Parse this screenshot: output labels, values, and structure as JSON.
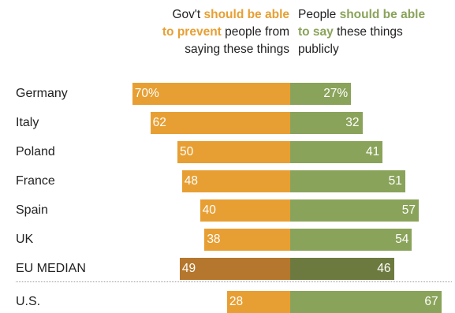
{
  "header": {
    "left": {
      "pre": "Gov't ",
      "hl1": "should be able",
      "hl2": "to prevent",
      "post": " people from",
      "line3": "saying these things"
    },
    "right": {
      "pre": "People ",
      "hl1": "should be able",
      "hl2": "to say",
      "post": " these things",
      "line3": "publicly"
    }
  },
  "colors": {
    "orange": "#e79f33",
    "green": "#8aa35a",
    "orange_dark": "#b5772d",
    "green_dark": "#6d7a3f"
  },
  "chart_data": {
    "type": "bar",
    "orientation": "horizontal-diverging",
    "categories": [
      "Germany",
      "Italy",
      "Poland",
      "France",
      "Spain",
      "UK",
      "EU MEDIAN",
      "U.S."
    ],
    "series": [
      {
        "name": "Gov't should be able to prevent people from saying these things",
        "values": [
          70,
          62,
          50,
          48,
          40,
          38,
          49,
          28
        ],
        "value_labels": [
          "70%",
          "62",
          "50",
          "48",
          "40",
          "38",
          "49",
          "28"
        ]
      },
      {
        "name": "People should be able to say these things publicly",
        "values": [
          27,
          32,
          41,
          51,
          57,
          54,
          46,
          67
        ],
        "value_labels": [
          "27%",
          "32",
          "41",
          "51",
          "57",
          "54",
          "46",
          "67"
        ]
      }
    ],
    "highlighted_categories": [
      "EU MEDIAN"
    ],
    "separator_before": "U.S."
  }
}
